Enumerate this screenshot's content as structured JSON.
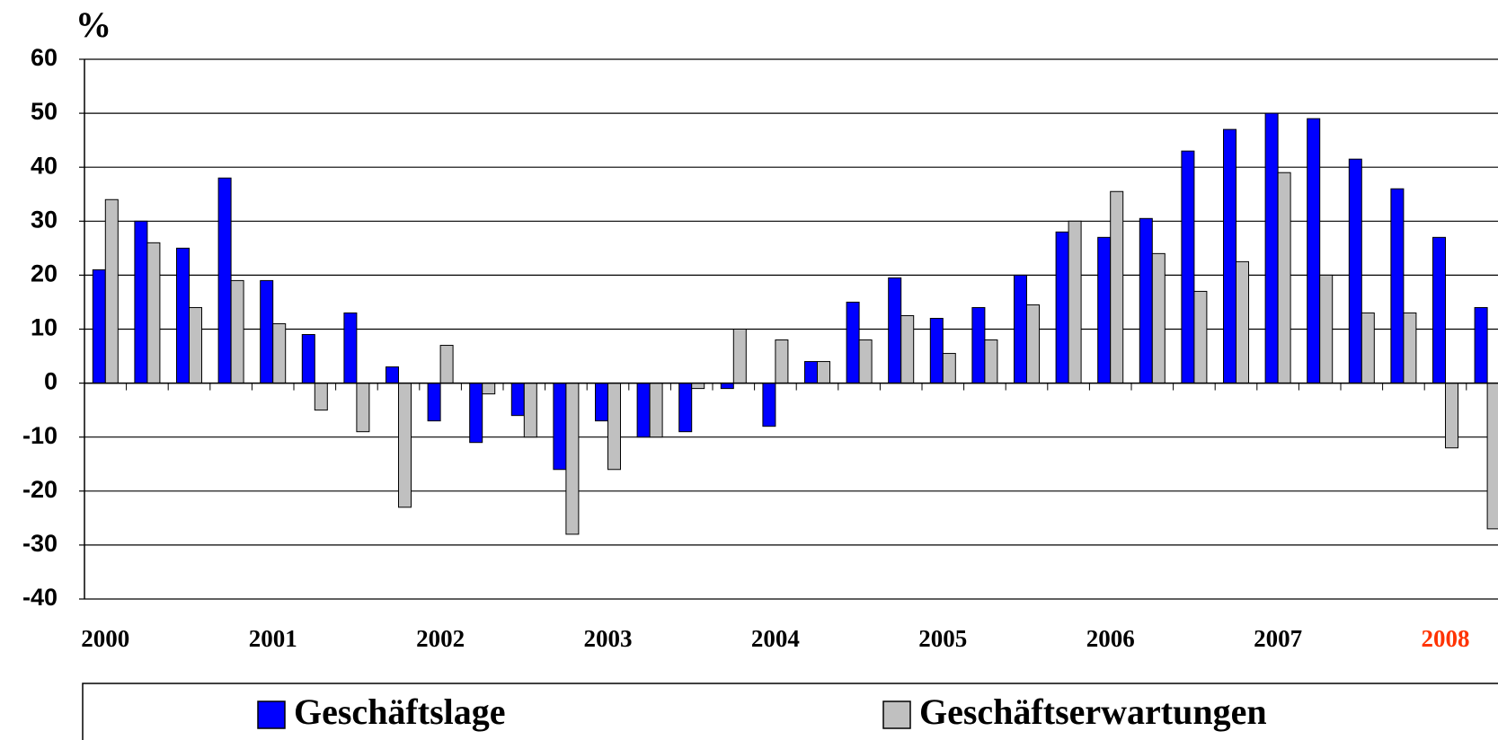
{
  "chart_data": {
    "type": "bar",
    "y_axis_label": "%",
    "categories": [
      "2000",
      null,
      null,
      null,
      "2001",
      null,
      null,
      null,
      "2002",
      null,
      null,
      null,
      "2003",
      null,
      null,
      null,
      "2004",
      null,
      null,
      null,
      "2005",
      null,
      null,
      null,
      "2006",
      null,
      null,
      null,
      "2007",
      null,
      null,
      null,
      "2008",
      null
    ],
    "series": [
      {
        "name": "Geschäftslage",
        "color": "#0000ff",
        "values": [
          21,
          30,
          25,
          38,
          19,
          9,
          13,
          3,
          -7,
          -11,
          -6,
          -16,
          -7,
          -10,
          -9,
          -1,
          -8,
          4,
          15,
          19.5,
          12,
          14,
          20,
          28,
          27,
          30.5,
          43,
          47,
          50,
          49,
          41.5,
          36,
          27,
          14
        ]
      },
      {
        "name": "Geschäftserwartungen",
        "color": "#c0c0c0",
        "values": [
          34,
          26,
          14,
          19,
          11,
          -5,
          -9,
          -23,
          7,
          -2,
          -10,
          -28,
          -16,
          -10,
          -1,
          10,
          8,
          4,
          8,
          12.5,
          5.5,
          8,
          14.5,
          30,
          35.5,
          24,
          17,
          22.5,
          39,
          20,
          13,
          13,
          -12,
          -27
        ]
      }
    ],
    "ylim": [
      -40,
      60
    ],
    "yticks": [
      -40,
      -30,
      -20,
      -10,
      0,
      10,
      20,
      30,
      40,
      50,
      60
    ],
    "grid": true,
    "highlight_category_index": 32,
    "highlight_color": "#ff3300"
  }
}
